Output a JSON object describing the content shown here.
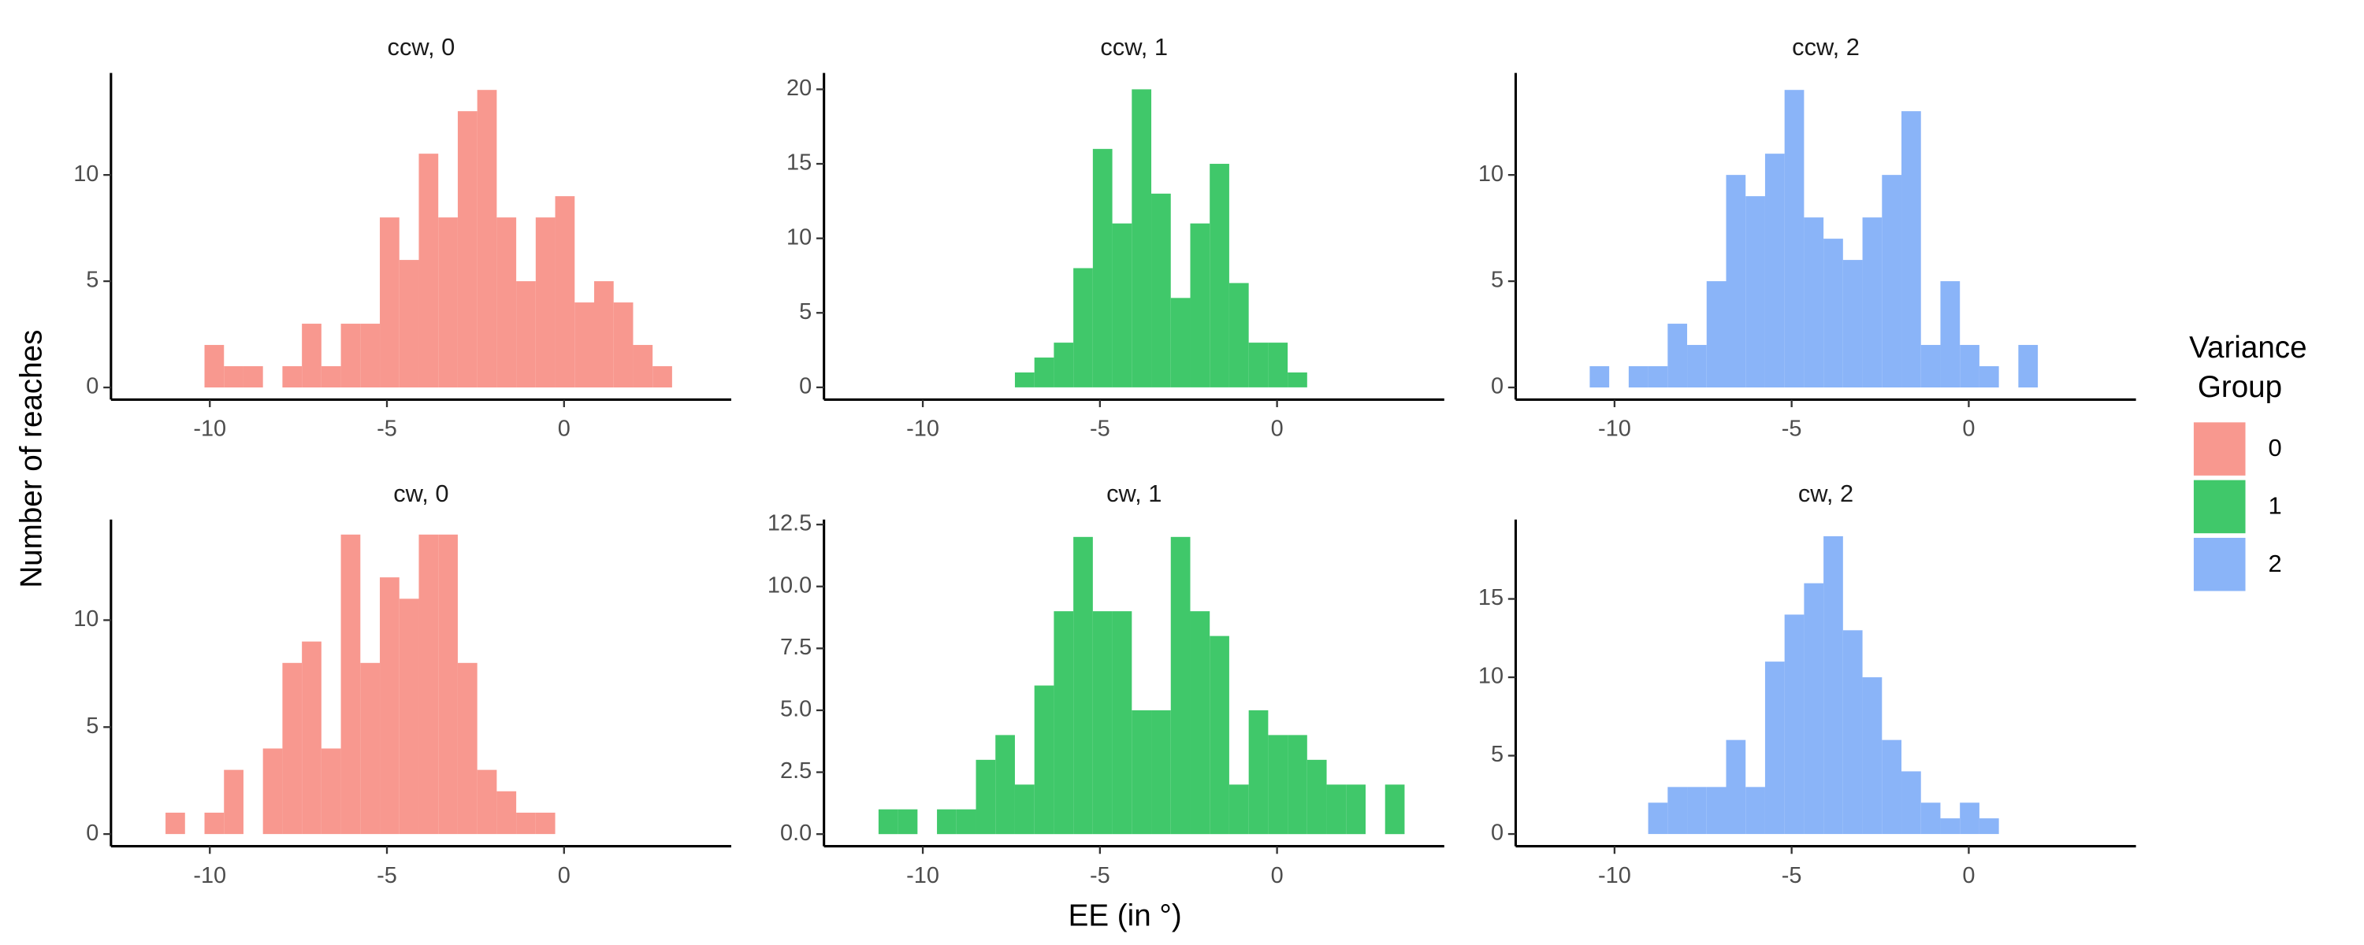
{
  "chart_data": [
    {
      "type": "histogram",
      "title": "ccw, 0",
      "color": "#F8988F",
      "bins": [
        -11.25,
        -10.7,
        -10.15,
        -9.6,
        -9.05,
        -8.5,
        -7.95,
        -7.4,
        -6.85,
        -6.3,
        -5.75,
        -5.2,
        -4.65,
        -4.1,
        -3.55,
        -3,
        -2.45,
        -1.9,
        -1.35,
        -0.8,
        -0.25,
        0.3,
        0.85,
        1.4,
        1.95,
        2.5,
        3.05,
        3.6
      ],
      "values": [
        0,
        0,
        2,
        1,
        1,
        0,
        1,
        3,
        1,
        3,
        3,
        8,
        6,
        11,
        8,
        13,
        14,
        8,
        5,
        8,
        9,
        4,
        5,
        4,
        2,
        1,
        0
      ],
      "xlim": [
        -12.79,
        4.72
      ],
      "xticks": [
        -10,
        -5,
        0
      ],
      "ylim": [
        -0.57,
        14.8
      ],
      "yticks": [
        0,
        5,
        10
      ]
    },
    {
      "type": "histogram",
      "title": "ccw, 1",
      "color": "#40C86A",
      "bins": [
        -11.25,
        -10.7,
        -10.15,
        -9.6,
        -9.05,
        -8.5,
        -7.95,
        -7.4,
        -6.85,
        -6.3,
        -5.75,
        -5.2,
        -4.65,
        -4.1,
        -3.55,
        -3,
        -2.45,
        -1.9,
        -1.35,
        -0.8,
        -0.25,
        0.3,
        0.85,
        1.4,
        1.95,
        2.5,
        3.05,
        3.6
      ],
      "values": [
        0,
        0,
        0,
        0,
        0,
        0,
        0,
        1,
        2,
        3,
        8,
        16,
        11,
        20,
        13,
        6,
        11,
        15,
        7,
        3,
        3,
        1,
        0,
        0,
        0,
        0,
        0
      ],
      "xlim": [
        -12.79,
        4.72
      ],
      "xticks": [
        -10,
        -5,
        0
      ],
      "ylim": [
        -0.82,
        21.1
      ],
      "yticks": [
        0,
        5,
        10,
        15,
        20
      ]
    },
    {
      "type": "histogram",
      "title": "ccw, 2",
      "color": "#8AB4F8",
      "bins": [
        -11.25,
        -10.7,
        -10.15,
        -9.6,
        -9.05,
        -8.5,
        -7.95,
        -7.4,
        -6.85,
        -6.3,
        -5.75,
        -5.2,
        -4.65,
        -4.1,
        -3.55,
        -3,
        -2.45,
        -1.9,
        -1.35,
        -0.8,
        -0.25,
        0.3,
        0.85,
        1.4,
        1.95,
        2.5,
        3.05,
        3.6
      ],
      "values": [
        0,
        1,
        0,
        1,
        1,
        3,
        2,
        5,
        10,
        9,
        11,
        14,
        8,
        7,
        6,
        8,
        10,
        13,
        2,
        5,
        2,
        1,
        0,
        2,
        0,
        0,
        0
      ],
      "xlim": [
        -12.79,
        4.72
      ],
      "xticks": [
        -10,
        -5,
        0
      ],
      "ylim": [
        -0.57,
        14.8
      ],
      "yticks": [
        0,
        5,
        10
      ]
    },
    {
      "type": "histogram",
      "title": "cw, 0",
      "color": "#F8988F",
      "bins": [
        -11.25,
        -10.7,
        -10.15,
        -9.6,
        -9.05,
        -8.5,
        -7.95,
        -7.4,
        -6.85,
        -6.3,
        -5.75,
        -5.2,
        -4.65,
        -4.1,
        -3.55,
        -3,
        -2.45,
        -1.9,
        -1.35,
        -0.8,
        -0.25,
        0.3,
        0.85,
        1.4,
        1.95,
        2.5,
        3.05,
        3.6
      ],
      "values": [
        1,
        0,
        1,
        3,
        0,
        4,
        8,
        9,
        4,
        14,
        8,
        12,
        11,
        14,
        14,
        8,
        3,
        2,
        1,
        1,
        0,
        0,
        0,
        0,
        0,
        0,
        0
      ],
      "xlim": [
        -12.79,
        4.72
      ],
      "xticks": [
        -10,
        -5,
        0
      ],
      "ylim": [
        -0.57,
        14.7
      ],
      "yticks": [
        0,
        5,
        10
      ]
    },
    {
      "type": "histogram",
      "title": "cw, 1",
      "color": "#40C86A",
      "bins": [
        -11.25,
        -10.7,
        -10.15,
        -9.6,
        -9.05,
        -8.5,
        -7.95,
        -7.4,
        -6.85,
        -6.3,
        -5.75,
        -5.2,
        -4.65,
        -4.1,
        -3.55,
        -3,
        -2.45,
        -1.9,
        -1.35,
        -0.8,
        -0.25,
        0.3,
        0.85,
        1.4,
        1.95,
        2.5,
        3.05,
        3.6
      ],
      "values": [
        1,
        1,
        0,
        1,
        1,
        3,
        4,
        2,
        6,
        9,
        12,
        9,
        9,
        5,
        5,
        12,
        9,
        8,
        2,
        5,
        4,
        4,
        3,
        2,
        2,
        0,
        2
      ],
      "xlim": [
        -12.79,
        4.72
      ],
      "xticks": [
        -10,
        -5,
        0
      ],
      "ylim": [
        -0.49,
        12.7
      ],
      "yticks": [
        {
          "value": 0,
          "label": "0.0"
        },
        {
          "value": 2.5,
          "label": "2.5"
        },
        {
          "value": 5,
          "label": "5.0"
        },
        {
          "value": 7.5,
          "label": "7.5"
        },
        {
          "value": 10,
          "label": "10.0"
        },
        {
          "value": 12.5,
          "label": "12.5"
        }
      ]
    },
    {
      "type": "histogram",
      "title": "cw, 2",
      "color": "#8AB4F8",
      "bins": [
        -11.25,
        -10.7,
        -10.15,
        -9.6,
        -9.05,
        -8.5,
        -7.95,
        -7.4,
        -6.85,
        -6.3,
        -5.75,
        -5.2,
        -4.65,
        -4.1,
        -3.55,
        -3,
        -2.45,
        -1.9,
        -1.35,
        -0.8,
        -0.25,
        0.3,
        0.85,
        1.4,
        1.95,
        2.5,
        3.05,
        3.6
      ],
      "values": [
        0,
        0,
        0,
        0,
        2,
        3,
        3,
        3,
        6,
        3,
        11,
        14,
        16,
        19,
        13,
        10,
        6,
        4,
        2,
        1,
        2,
        1,
        0,
        0,
        0,
        0,
        0
      ],
      "xlim": [
        -12.79,
        4.72
      ],
      "xticks": [
        -10,
        -5,
        0
      ],
      "ylim": [
        -0.78,
        20.06
      ],
      "yticks": [
        0,
        5,
        10,
        15
      ]
    }
  ],
  "x_label": "EE (in °)",
  "y_label": "Number of reaches",
  "legend": {
    "title": [
      "Variance",
      " Group"
    ],
    "entries": [
      {
        "label": "0",
        "color": "#F8988F"
      },
      {
        "label": "1",
        "color": "#40C86A"
      },
      {
        "label": "2",
        "color": "#8AB4F8"
      }
    ]
  }
}
